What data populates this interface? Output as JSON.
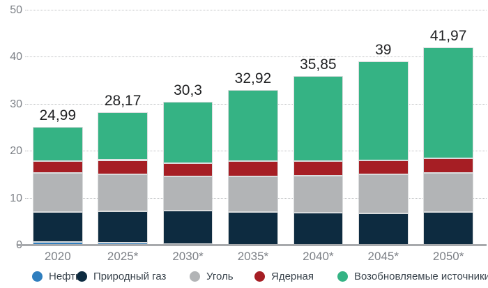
{
  "chart_data": {
    "type": "bar",
    "stacked": true,
    "title": "",
    "xlabel": "",
    "ylabel": "",
    "categories": [
      "2020",
      "2025*",
      "2030*",
      "2035*",
      "2040*",
      "2045*",
      "2050*"
    ],
    "totals": [
      24.99,
      28.17,
      30.3,
      32.92,
      35.85,
      39,
      41.97
    ],
    "totals_display": [
      "24,99",
      "28,17",
      "30,3",
      "32,92",
      "35,85",
      "39",
      "41,97"
    ],
    "series": [
      {
        "name": "Нефть",
        "color": "#2f7ebe",
        "values": [
          0.6,
          0.5,
          0.15,
          0,
          0,
          0,
          0
        ]
      },
      {
        "name": "Природный газ",
        "color": "#0d2b40",
        "values": [
          6.4,
          6.6,
          7.05,
          7.0,
          6.8,
          6.7,
          7.0
        ]
      },
      {
        "name": "Уголь",
        "color": "#b2b4b6",
        "values": [
          8.3,
          7.9,
          7.3,
          7.5,
          7.8,
          8.3,
          8.3
        ]
      },
      {
        "name": "Ядерная",
        "color": "#a61e24",
        "values": [
          2.5,
          3.0,
          2.9,
          3.3,
          3.2,
          3.0,
          3.0
        ]
      },
      {
        "name": "Возобновляемые источники",
        "color": "#35b384",
        "values": [
          7.19,
          10.17,
          12.9,
          15.12,
          18.05,
          21.0,
          23.67
        ]
      }
    ],
    "y_ticks": [
      0,
      10,
      20,
      30,
      40,
      50
    ],
    "ylim": [
      0,
      50
    ],
    "grid": "horizontal-dotted",
    "legend_position": "bottom"
  },
  "colors": {
    "background": "#ffffff",
    "gridline": "#bdbfc1",
    "axis_line": "#a7a9ac",
    "tick_label": "#7d8187",
    "value_label": "#1f2022",
    "legend_label": "#39434c"
  }
}
